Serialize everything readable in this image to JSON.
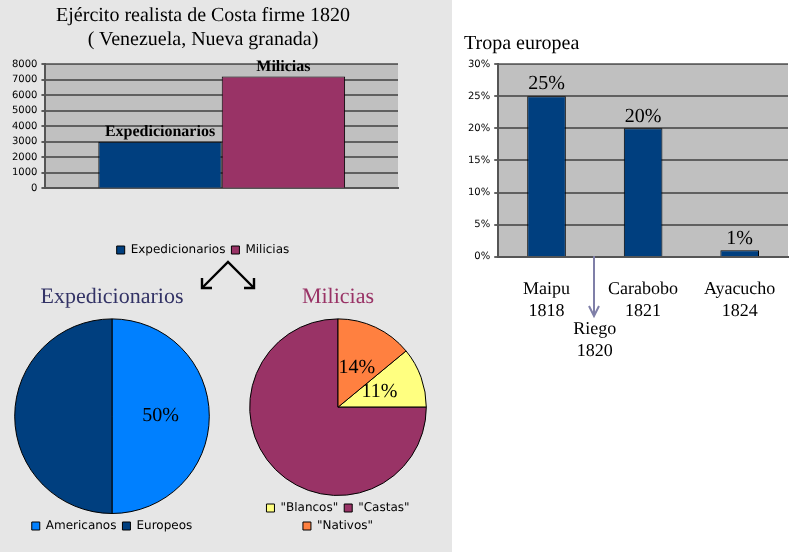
{
  "chart_data": [
    {
      "type": "bar",
      "title": "Ejército realista de Costa firme 1820",
      "subtitle": "( Venezuela, Nueva granada)",
      "categories": [
        null
      ],
      "series": [
        {
          "name": "Expedicionarios",
          "color": "#003f7f",
          "values": [
            3000
          ]
        },
        {
          "name": "Milicias",
          "color": "#993366",
          "values": [
            7200
          ]
        }
      ],
      "ylim": [
        0,
        8000
      ],
      "yticks": [
        0,
        1000,
        2000,
        3000,
        4000,
        5000,
        6000,
        7000,
        8000
      ],
      "grid": "y",
      "legend": "bottom"
    },
    {
      "type": "pie",
      "title": "Expedicionarios",
      "categories": [
        "Americanos",
        "Europeos"
      ],
      "values": [
        50,
        50
      ],
      "colors": [
        "#0080ff",
        "#003f7f"
      ],
      "value_labels": [
        "50%",
        null
      ],
      "legend": "bottom"
    },
    {
      "type": "pie",
      "title": "Milicias",
      "categories": [
        "\"Blancos\"",
        "\"Castas\"",
        "\"Nativos\""
      ],
      "values": [
        11,
        75,
        14
      ],
      "colors": [
        "#ffff80",
        "#993366",
        "#ff8040"
      ],
      "value_labels": [
        "11%",
        null,
        "14%"
      ],
      "legend": "bottom"
    },
    {
      "type": "bar",
      "title": "Tropa europea",
      "categories": [
        "Maipu\n1818",
        "Carabobo\n1821",
        "Ayacucho\n1824"
      ],
      "values": [
        25,
        20,
        1
      ],
      "color": "#003f7f",
      "value_labels": [
        "25%",
        "20%",
        "1%"
      ],
      "ylim": [
        0,
        30
      ],
      "yticks": [
        {
          "value": 0,
          "label": "0%"
        },
        {
          "value": 5,
          "label": "5%"
        },
        {
          "value": 10,
          "label": "10%"
        },
        {
          "value": 15,
          "label": "15%"
        },
        {
          "value": 20,
          "label": "20%"
        },
        {
          "value": 25,
          "label": "25%"
        },
        {
          "value": 30,
          "label": "30%"
        }
      ],
      "grid": "y",
      "annotations": [
        "Riego\n1820"
      ]
    }
  ]
}
